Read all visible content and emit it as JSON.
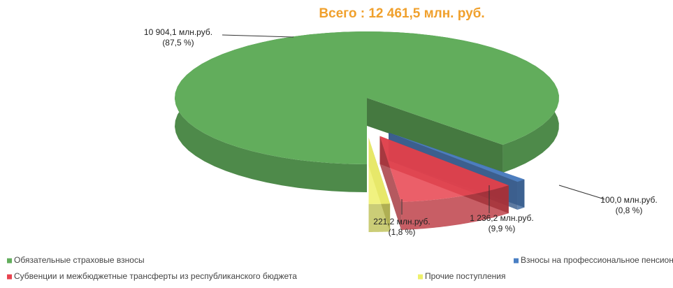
{
  "chart_data": {
    "type": "pie3d",
    "title": "Всего : 12 461,5 млн. руб.",
    "categories": [
      "Обязательные  страховые  взносы",
      "Взносы на профессиональное  пенсионное  страхование",
      "Субвенции  и межбюджетные  трансферты  из республиканского  бюджета",
      "Прочие  поступления"
    ],
    "values": [
      10904.1,
      100.0,
      1236.2,
      221.2
    ],
    "value_labels": [
      "10 904,1 млн.руб.",
      "100,0 млн.руб.",
      "1 236,2 млн.руб.",
      "221,2 млн.руб."
    ],
    "percents": [
      87.5,
      0.8,
      9.9,
      1.8
    ],
    "percent_labels": [
      "(87,5 %)",
      "(0,8 %)",
      "(9,9 %)",
      "(1,8 %)"
    ],
    "colors": [
      "#62ad5c",
      "#4a7fc4",
      "#e8434f",
      "#eef06a"
    ]
  }
}
